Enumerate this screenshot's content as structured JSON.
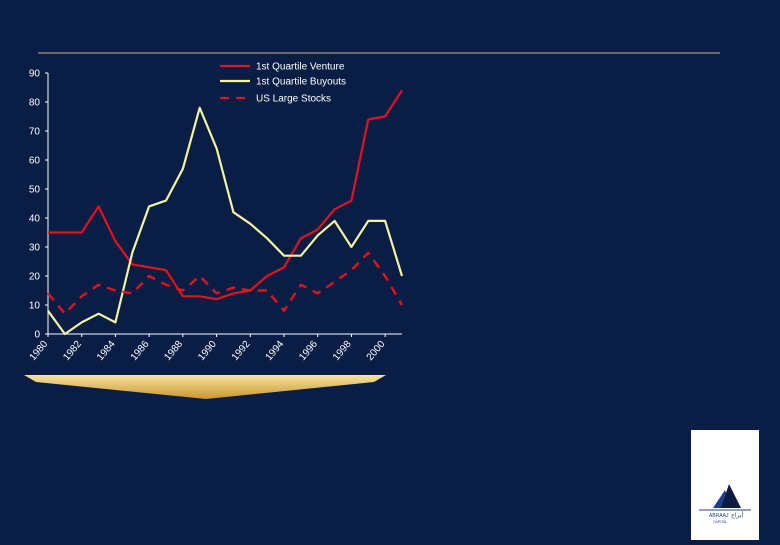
{
  "colors": {
    "background": "#0a1e45",
    "rule": "#c8b98a",
    "axis": "#ffffff",
    "venture": "#e0141e",
    "buyouts": "#f3f3a0",
    "stocks": "#e0141e",
    "arrow_top": "#f6e3a0",
    "arrow_bottom": "#c9962e"
  },
  "chart_data": {
    "type": "line",
    "x": [
      1980,
      1981,
      1982,
      1983,
      1984,
      1985,
      1986,
      1987,
      1988,
      1989,
      1990,
      1991,
      1992,
      1993,
      1994,
      1995,
      1996,
      1997,
      1998,
      1999,
      2000,
      2001
    ],
    "x_tick_labels": [
      "1980",
      "1982",
      "1984",
      "1986",
      "1988",
      "1990",
      "1992",
      "1994",
      "1996",
      "1998",
      "2000"
    ],
    "x_tick_values": [
      1980,
      1982,
      1984,
      1986,
      1988,
      1990,
      1992,
      1994,
      1996,
      1998,
      2000
    ],
    "y_tick_labels": [
      "0",
      "10",
      "20",
      "30",
      "40",
      "50",
      "60",
      "70",
      "80",
      "90"
    ],
    "ylim": [
      0,
      90
    ],
    "xlim": [
      1980,
      2001
    ],
    "grid": false,
    "legend_position": "top",
    "series": [
      {
        "name": "1st Quartile Venture",
        "style": "solid",
        "values": [
          35,
          35,
          35,
          44,
          32,
          24,
          23,
          22,
          13,
          13,
          12,
          14,
          15,
          20,
          23,
          33,
          36,
          43,
          46,
          74,
          75,
          84
        ]
      },
      {
        "name": "1st Quartile Buyouts",
        "style": "solid",
        "values": [
          8,
          0,
          4,
          7,
          4,
          28,
          44,
          46,
          57,
          78,
          64,
          42,
          38,
          33,
          27,
          27,
          34,
          39,
          30,
          39,
          39,
          20
        ]
      },
      {
        "name": "US Large Stocks",
        "style": "dashed",
        "values": [
          14,
          7,
          13,
          17,
          15,
          14,
          20,
          17,
          15,
          20,
          14,
          16,
          15,
          15,
          8,
          17,
          14,
          18,
          22,
          28,
          20,
          10
        ]
      }
    ]
  },
  "logo": {
    "name": "ABRAAJ",
    "sub": "CAPITAL",
    "arabic": "أبراج"
  }
}
